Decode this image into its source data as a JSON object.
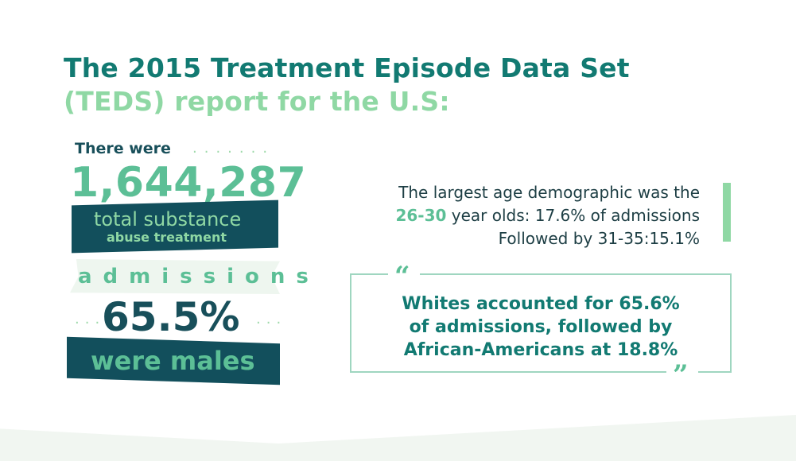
{
  "title": {
    "line1": "The 2015 Treatment Episode Data Set",
    "line2": "(TEDS) report for the U.S:"
  },
  "left_panel": {
    "there_were": "There were",
    "dots": ".......",
    "admissions_count": "1,644,287",
    "total_substance": "total substance",
    "abuse_treatment": "abuse treatment",
    "admissions": "admissions",
    "dots_left": "...",
    "dots_right": "...",
    "male_pct": "65.5%",
    "were_males": "were males"
  },
  "age": {
    "line1": "The largest age demographic was the",
    "highlight": "26-30",
    "line2_rest": " year olds: 17.6% of admissions",
    "line3": "Followed by 31-35:15.1%"
  },
  "quote": {
    "open_mark": "“",
    "close_mark": "”",
    "line1": "Whites accounted for 65.6%",
    "line2": "of admissions, followed by",
    "line3": "African-Americans at 18.8%"
  },
  "colors": {
    "dark_teal": "#124f5c",
    "teal": "#127a72",
    "green": "#5cbf96",
    "light_green": "#8fd8a4"
  }
}
